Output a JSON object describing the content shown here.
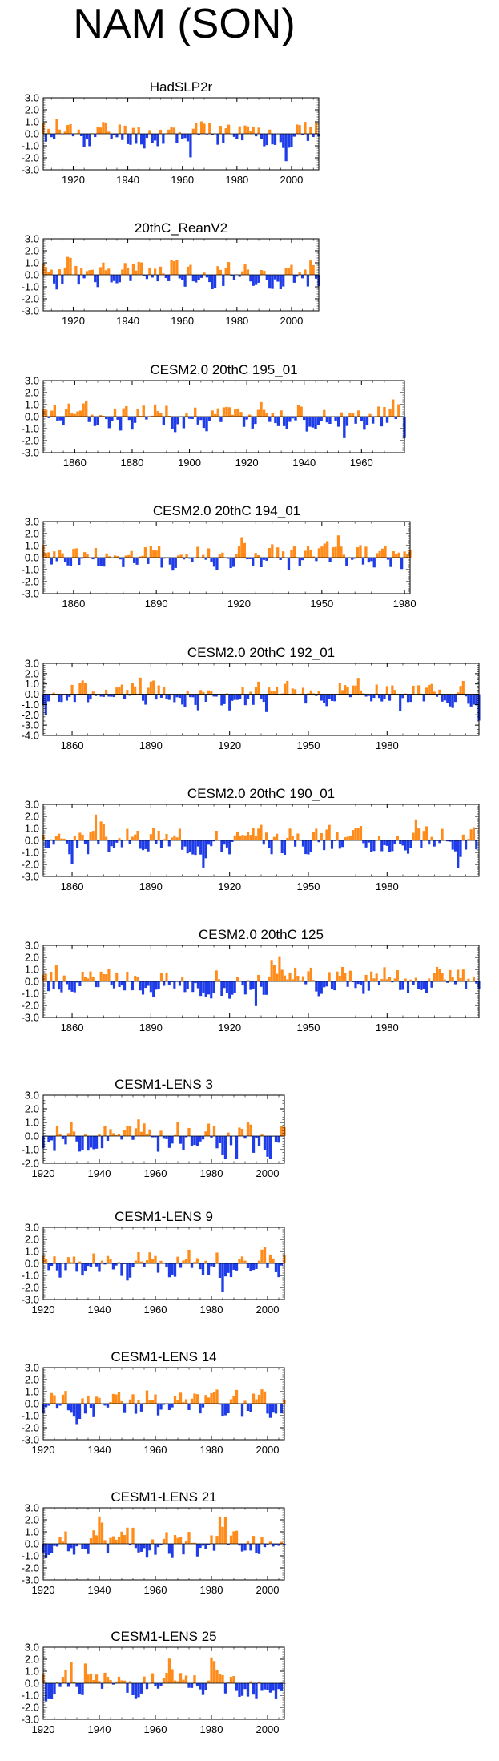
{
  "page_title": "NAM (SON)",
  "colors": {
    "positive": "#ff8c1a",
    "negative": "#1e3ce8",
    "axis": "#000000"
  },
  "chart_data": [
    {
      "type": "area",
      "title": "HadSLP2r",
      "xlim": [
        1909,
        2010
      ],
      "ylim": [
        -3.0,
        3.0
      ],
      "xticks": [
        1920,
        1940,
        1960,
        1980,
        2000
      ],
      "yticks": [
        3.0,
        2.0,
        1.0,
        0.0,
        -1.0,
        -2.0,
        -3.0
      ],
      "ytick_labels": [
        "3.0",
        "2.0",
        "1.0",
        "0.0",
        "-1.0",
        "-2.0",
        "-3.0"
      ],
      "x_start": 1909,
      "seed": 11
    },
    {
      "type": "area",
      "title": "20thC_ReanV2",
      "xlim": [
        1909,
        2010
      ],
      "ylim": [
        -3.0,
        3.0
      ],
      "xticks": [
        1920,
        1940,
        1960,
        1980,
        2000
      ],
      "yticks": [
        3.0,
        2.0,
        1.0,
        0.0,
        -1.0,
        -2.0,
        -3.0
      ],
      "ytick_labels": [
        "3.0",
        "2.0",
        "1.0",
        "0.0",
        "-1.0",
        "-2.0",
        "-3.0"
      ],
      "x_start": 1909,
      "seed": 23
    },
    {
      "type": "area",
      "title": "CESM2.0 20thC 195_01",
      "xlim": [
        1849,
        1975
      ],
      "ylim": [
        -3.0,
        3.0
      ],
      "xticks": [
        1860,
        1880,
        1900,
        1920,
        1940,
        1960
      ],
      "yticks": [
        3.0,
        2.0,
        1.0,
        0.0,
        -1.0,
        -2.0,
        -3.0
      ],
      "ytick_labels": [
        "3.0",
        "2.0",
        "1.0",
        "0.0",
        "-1.0",
        "-2.0",
        "-3.0"
      ],
      "x_start": 1849,
      "seed": 37
    },
    {
      "type": "area",
      "title": "CESM2.0 20thC 194_01",
      "xlim": [
        1849,
        1982
      ],
      "ylim": [
        -3.0,
        3.0
      ],
      "xticks": [
        1860,
        1890,
        1920,
        1950,
        1980
      ],
      "yticks": [
        3.0,
        2.0,
        1.0,
        0.0,
        -1.0,
        -2.0,
        -3.0
      ],
      "ytick_labels": [
        "3.0",
        "2.0",
        "1.0",
        "0.0",
        "-1.0",
        "-2.0",
        "-3.0"
      ],
      "x_start": 1849,
      "seed": 41
    },
    {
      "type": "area",
      "title": "CESM2.0 20thC 192_01",
      "xlim": [
        1849,
        2015
      ],
      "ylim": [
        -4.0,
        3.0
      ],
      "xticks": [
        1860,
        1890,
        1920,
        1950,
        1980
      ],
      "yticks": [
        3.0,
        2.0,
        1.0,
        0.0,
        -1.0,
        -2.0,
        -3.0,
        -4.0
      ],
      "ytick_labels": [
        "3.0",
        "2.0",
        "1.0",
        "0.0",
        "-1.0",
        "-2.0",
        "-3.0",
        "-4.0"
      ],
      "x_start": 1849,
      "seed": 53
    },
    {
      "type": "area",
      "title": "CESM2.0 20thC 190_01",
      "xlim": [
        1849,
        2015
      ],
      "ylim": [
        -3.0,
        3.0
      ],
      "xticks": [
        1860,
        1890,
        1920,
        1950,
        1980
      ],
      "yticks": [
        3.0,
        2.0,
        1.0,
        0.0,
        -1.0,
        -2.0,
        -3.0
      ],
      "ytick_labels": [
        "3.0",
        "2.0",
        "1.0",
        "0.0",
        "-1.0",
        "-2.0",
        "-3.0"
      ],
      "x_start": 1849,
      "seed": 67
    },
    {
      "type": "area",
      "title": "CESM2.0 20thC 125",
      "xlim": [
        1849,
        2015
      ],
      "ylim": [
        -3.0,
        3.0
      ],
      "xticks": [
        1860,
        1890,
        1920,
        1950,
        1980
      ],
      "yticks": [
        3.0,
        2.0,
        1.0,
        0.0,
        -1.0,
        -2.0,
        -3.0
      ],
      "ytick_labels": [
        "3.0",
        "2.0",
        "1.0",
        "0.0",
        "-1.0",
        "-2.0",
        "-3.0"
      ],
      "x_start": 1849,
      "seed": 79
    },
    {
      "type": "area",
      "title": "CESM1-LENS 3",
      "xlim": [
        1920,
        2006
      ],
      "ylim": [
        -2.0,
        3.0
      ],
      "xticks": [
        1920,
        1940,
        1960,
        1980,
        2000
      ],
      "yticks": [
        3.0,
        2.0,
        1.0,
        0.0,
        -1.0,
        -2.0
      ],
      "ytick_labels": [
        "3.0",
        "2.0",
        "1.0",
        "0.0",
        "-1.0",
        "-2.0"
      ],
      "x_start": 1920,
      "seed": 83
    },
    {
      "type": "area",
      "title": "CESM1-LENS 9",
      "xlim": [
        1920,
        2006
      ],
      "ylim": [
        -3.0,
        3.0
      ],
      "xticks": [
        1920,
        1940,
        1960,
        1980,
        2000
      ],
      "yticks": [
        3.0,
        2.0,
        1.0,
        0.0,
        -1.0,
        -2.0,
        -3.0
      ],
      "ytick_labels": [
        "3.0",
        "2.0",
        "1.0",
        "0.0",
        "-1.0",
        "-2.0",
        "-3.0"
      ],
      "x_start": 1920,
      "seed": 97
    },
    {
      "type": "area",
      "title": "CESM1-LENS 14",
      "xlim": [
        1920,
        2006
      ],
      "ylim": [
        -3.0,
        3.0
      ],
      "xticks": [
        1920,
        1940,
        1960,
        1980,
        2000
      ],
      "yticks": [
        3.0,
        2.0,
        1.0,
        0.0,
        -1.0,
        -2.0,
        -3.0
      ],
      "ytick_labels": [
        "3.0",
        "2.0",
        "1.0",
        "0.0",
        "-1.0",
        "-2.0",
        "-3.0"
      ],
      "x_start": 1920,
      "seed": 101
    },
    {
      "type": "area",
      "title": "CESM1-LENS 21",
      "xlim": [
        1920,
        2006
      ],
      "ylim": [
        -3.0,
        3.0
      ],
      "xticks": [
        1920,
        1940,
        1960,
        1980,
        2000
      ],
      "yticks": [
        3.0,
        2.0,
        1.0,
        0.0,
        -1.0,
        -2.0,
        -3.0
      ],
      "ytick_labels": [
        "3.0",
        "2.0",
        "1.0",
        "0.0",
        "-1.0",
        "-2.0",
        "-3.0"
      ],
      "x_start": 1920,
      "seed": 113
    },
    {
      "type": "area",
      "title": "CESM1-LENS 25",
      "xlim": [
        1920,
        2006
      ],
      "ylim": [
        -3.0,
        3.0
      ],
      "xticks": [
        1920,
        1940,
        1960,
        1980,
        2000
      ],
      "yticks": [
        3.0,
        2.0,
        1.0,
        0.0,
        -1.0,
        -2.0,
        -3.0
      ],
      "ytick_labels": [
        "3.0",
        "2.0",
        "1.0",
        "0.0",
        "-1.0",
        "-2.0",
        "-3.0"
      ],
      "x_start": 1920,
      "seed": 127
    }
  ]
}
